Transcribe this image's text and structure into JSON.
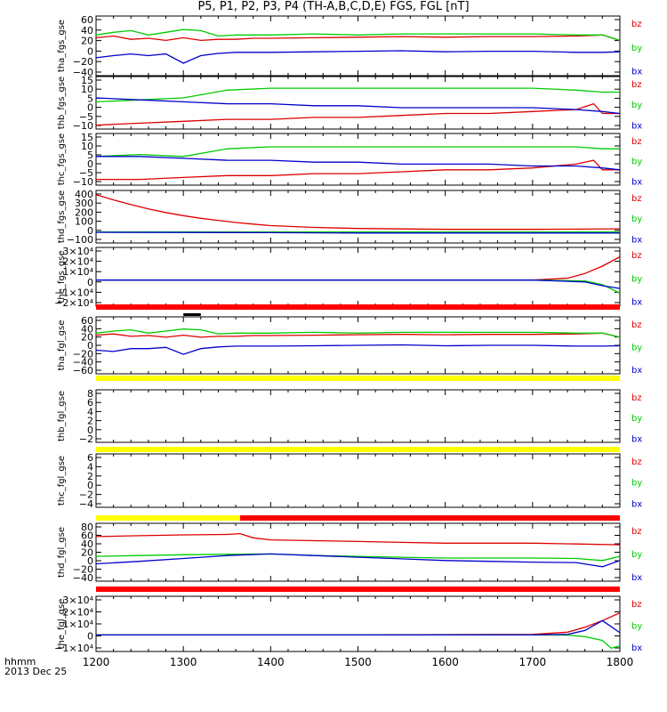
{
  "chart_data": {
    "type": "line",
    "title": "P5, P1, P2, P3, P4 (TH-A,B,C,D,E) FGS, FGL [nT]",
    "x_axis": {
      "label": "hhmm",
      "sublabel": "2013 Dec 25",
      "range": [
        1200,
        1800
      ],
      "ticks": [
        "1200",
        "1300",
        "1400",
        "1500",
        "1600",
        "1700",
        "1800"
      ]
    },
    "legend": [
      "bz",
      "by",
      "bx"
    ],
    "colors": {
      "bz": "#dd0000",
      "by": "#00cc00",
      "bx": "#0000cc",
      "bar_red": "#ff0000",
      "bar_yellow": "#ffff00",
      "bar_black": "#000000"
    },
    "panels": [
      {
        "id": "tha_fgs_gse",
        "ylabel": "tha_fgs_gse",
        "ylim": [
          -45,
          65
        ],
        "yticks": [
          "60",
          "40",
          "20",
          "0",
          "−20",
          "−40"
        ],
        "series": [
          {
            "name": "bz",
            "x": [
              1200,
              1220,
              1240,
              1260,
              1280,
              1300,
              1320,
              1340,
              1360,
              1380,
              1400,
              1450,
              1500,
              1550,
              1600,
              1650,
              1700,
              1750,
              1780,
              1800
            ],
            "y": [
              25,
              28,
              22,
              24,
              20,
              25,
              20,
              22,
              22,
              24,
              24,
              25,
              26,
              27,
              26,
              27,
              27,
              28,
              30,
              20
            ]
          },
          {
            "name": "by",
            "x": [
              1200,
              1220,
              1240,
              1260,
              1280,
              1300,
              1320,
              1340,
              1360,
              1380,
              1400,
              1450,
              1500,
              1550,
              1600,
              1650,
              1700,
              1750,
              1780,
              1800
            ],
            "y": [
              30,
              35,
              38,
              30,
              35,
              40,
              38,
              28,
              30,
              30,
              30,
              32,
              30,
              32,
              32,
              32,
              32,
              30,
              30,
              20
            ]
          },
          {
            "name": "bx",
            "x": [
              1200,
              1220,
              1240,
              1260,
              1280,
              1300,
              1320,
              1340,
              1360,
              1380,
              1400,
              1450,
              1500,
              1550,
              1600,
              1650,
              1700,
              1750,
              1780,
              1800
            ],
            "y": [
              -12,
              -8,
              -5,
              -8,
              -5,
              -22,
              -8,
              -4,
              -2,
              -2,
              -2,
              -1,
              0,
              1,
              -1,
              0,
              0,
              -2,
              -2,
              -1
            ]
          }
        ]
      },
      {
        "id": "thb_fgs_gse",
        "ylabel": "thb_fgs_gse",
        "ylim": [
          -11,
          16
        ],
        "yticks": [
          "15",
          "10",
          "5",
          "0",
          "−5",
          "−10"
        ],
        "series": [
          {
            "name": "bz",
            "x": [
              1200,
              1250,
              1300,
              1350,
              1400,
              1450,
              1500,
              1550,
              1600,
              1650,
              1700,
              1750,
              1770,
              1780,
              1800
            ],
            "y": [
              -9,
              -8,
              -7,
              -6,
              -6,
              -5,
              -5,
              -4,
              -3,
              -3,
              -2,
              -1,
              2,
              -3,
              -3
            ]
          },
          {
            "name": "by",
            "x": [
              1200,
              1250,
              1300,
              1350,
              1400,
              1450,
              1500,
              1550,
              1600,
              1650,
              1700,
              1750,
              1780,
              1800
            ],
            "y": [
              3,
              4,
              5,
              9,
              10,
              10,
              10,
              10,
              10,
              10,
              10,
              9,
              8,
              8
            ]
          },
          {
            "name": "bx",
            "x": [
              1200,
              1250,
              1300,
              1350,
              1400,
              1450,
              1500,
              1550,
              1600,
              1650,
              1700,
              1750,
              1780,
              1800
            ],
            "y": [
              5,
              4,
              3,
              2,
              2,
              1,
              1,
              0,
              0,
              0,
              0,
              -1,
              -2,
              -3
            ]
          }
        ]
      },
      {
        "id": "thc_fgs_gse",
        "ylabel": "thc_fgs_gse",
        "ylim": [
          -11,
          16
        ],
        "yticks": [
          "15",
          "10",
          "5",
          "0",
          "−5",
          "−10"
        ],
        "series": [
          {
            "name": "bz",
            "x": [
              1200,
              1250,
              1300,
              1350,
              1400,
              1450,
              1500,
              1550,
              1600,
              1650,
              1700,
              1750,
              1770,
              1780,
              1800
            ],
            "y": [
              -8,
              -8,
              -7,
              -6,
              -6,
              -5,
              -5,
              -4,
              -3,
              -3,
              -2,
              0,
              2,
              -3,
              -3
            ]
          },
          {
            "name": "by",
            "x": [
              1200,
              1250,
              1300,
              1350,
              1400,
              1450,
              1500,
              1550,
              1600,
              1650,
              1700,
              1750,
              1780,
              1800
            ],
            "y": [
              4,
              5,
              4,
              8,
              9,
              9,
              9,
              9,
              9,
              9,
              9,
              9,
              8,
              8
            ]
          },
          {
            "name": "bx",
            "x": [
              1200,
              1250,
              1300,
              1350,
              1400,
              1450,
              1500,
              1550,
              1600,
              1650,
              1700,
              1750,
              1780,
              1800
            ],
            "y": [
              4,
              4,
              3,
              2,
              2,
              1,
              1,
              0,
              0,
              0,
              -1,
              -1,
              -2,
              -3
            ]
          }
        ]
      },
      {
        "id": "thd_fgs_gse",
        "ylabel": "thd_fgs_gse",
        "ylim": [
          -100,
          400
        ],
        "yticks": [
          "400",
          "300",
          "200",
          "100",
          "0",
          "−100"
        ],
        "series": [
          {
            "name": "bz",
            "x": [
              1200,
              1220,
              1240,
              1260,
              1280,
              1300,
              1320,
              1340,
              1360,
              1380,
              1400,
              1450,
              1500,
              1600,
              1700,
              1800
            ],
            "y": [
              360,
              310,
              265,
              225,
              190,
              160,
              135,
              115,
              95,
              80,
              65,
              48,
              38,
              30,
              30,
              35
            ]
          },
          {
            "name": "by",
            "x": [
              1200,
              1300,
              1400,
              1500,
              1600,
              1700,
              1800
            ],
            "y": [
              5,
              5,
              5,
              5,
              5,
              5,
              5
            ]
          },
          {
            "name": "bx",
            "x": [
              1200,
              1300,
              1400,
              1500,
              1600,
              1700,
              1800
            ],
            "y": [
              2,
              0,
              -2,
              -5,
              -5,
              -5,
              -5
            ]
          }
        ]
      },
      {
        "id": "the_fgs_gse",
        "ylabel": "the_fgs_gse",
        "ylim": [
          -28000,
          35000
        ],
        "yticks": [
          "3×10⁴",
          "2×10⁴",
          "1×10⁴",
          "0",
          "−1×10⁴",
          "−2×10⁴"
        ],
        "series": [
          {
            "name": "bz",
            "x": [
              1200,
              1500,
              1700,
              1740,
              1760,
              1780,
              1800
            ],
            "y": [
              0,
              0,
              0,
              2000,
              7000,
              15000,
              25000
            ]
          },
          {
            "name": "by",
            "x": [
              1200,
              1500,
              1700,
              1760,
              1780,
              1800
            ],
            "y": [
              0,
              0,
              0,
              -1000,
              -5000,
              -14000
            ]
          },
          {
            "name": "bx",
            "x": [
              1200,
              1500,
              1700,
              1760,
              1780,
              1800
            ],
            "y": [
              0,
              0,
              0,
              -2000,
              -6000,
              -9000
            ]
          }
        ]
      },
      {
        "id": "tha_fgl_gse",
        "ylabel": "tha_fgl_gse",
        "ylim": [
          -70,
          70
        ],
        "yticks": [
          "60",
          "40",
          "20",
          "0",
          "−20",
          "−40",
          "−60"
        ],
        "series": [
          {
            "name": "bz",
            "x": [
              1200,
              1220,
              1240,
              1260,
              1280,
              1300,
              1320,
              1340,
              1360,
              1380,
              1400,
              1450,
              1500,
              1550,
              1600,
              1650,
              1700,
              1750,
              1780,
              1800
            ],
            "y": [
              25,
              28,
              22,
              24,
              20,
              25,
              20,
              22,
              22,
              24,
              24,
              25,
              26,
              27,
              26,
              27,
              27,
              28,
              30,
              20
            ]
          },
          {
            "name": "by",
            "x": [
              1200,
              1220,
              1240,
              1260,
              1280,
              1300,
              1320,
              1340,
              1360,
              1380,
              1400,
              1450,
              1500,
              1550,
              1600,
              1650,
              1700,
              1750,
              1780,
              1800
            ],
            "y": [
              30,
              35,
              38,
              30,
              35,
              40,
              38,
              28,
              30,
              30,
              30,
              32,
              30,
              32,
              32,
              32,
              32,
              30,
              30,
              20
            ]
          },
          {
            "name": "bx",
            "x": [
              1200,
              1220,
              1240,
              1260,
              1280,
              1300,
              1320,
              1340,
              1360,
              1380,
              1400,
              1450,
              1500,
              1550,
              1600,
              1650,
              1700,
              1750,
              1780,
              1800
            ],
            "y": [
              -12,
              -15,
              -8,
              -8,
              -5,
              -22,
              -8,
              -4,
              -2,
              -2,
              -2,
              -1,
              0,
              1,
              -1,
              0,
              0,
              -2,
              -2,
              -1
            ]
          }
        ]
      },
      {
        "id": "thb_fgl_gse",
        "ylabel": "thb_fgl_gse",
        "ylim": [
          -3,
          9
        ],
        "yticks": [
          "8",
          "6",
          "4",
          "2",
          "0",
          "−2"
        ],
        "series": []
      },
      {
        "id": "thc_fgl_gse",
        "ylabel": "thc_fgl_gse",
        "ylim": [
          -5,
          7
        ],
        "yticks": [
          "6",
          "4",
          "2",
          "0",
          "−2",
          "−4"
        ],
        "series": []
      },
      {
        "id": "thd_fgl_gse",
        "ylabel": "thd_fgl_gse",
        "ylim": [
          -50,
          90
        ],
        "yticks": [
          "80",
          "60",
          "40",
          "20",
          "0",
          "−20",
          "−40"
        ],
        "series": [
          {
            "name": "bz",
            "x": [
              1200,
              1250,
              1300,
              1350,
              1365,
              1380,
              1400,
              1450,
              1500,
              1550,
              1600,
              1650,
              1700,
              1750,
              1800
            ],
            "y": [
              58,
              60,
              62,
              63,
              65,
              55,
              50,
              48,
              46,
              44,
              42,
              42,
              42,
              40,
              38
            ]
          },
          {
            "name": "by",
            "x": [
              1200,
              1250,
              1300,
              1350,
              1400,
              1450,
              1500,
              1550,
              1600,
              1650,
              1700,
              1750,
              1780,
              1800
            ],
            "y": [
              10,
              12,
              14,
              15,
              16,
              12,
              10,
              8,
              6,
              6,
              6,
              5,
              0,
              10
            ]
          },
          {
            "name": "bx",
            "x": [
              1200,
              1250,
              1300,
              1350,
              1400,
              1450,
              1500,
              1550,
              1600,
              1650,
              1700,
              1750,
              1780,
              1800
            ],
            "y": [
              -8,
              -2,
              5,
              12,
              16,
              12,
              8,
              4,
              0,
              -2,
              -4,
              -5,
              -15,
              0
            ]
          }
        ]
      },
      {
        "id": "the_fgl_gse",
        "ylabel": "the_fgl_gse",
        "ylim": [
          -15000,
          35000
        ],
        "yticks": [
          "3×10⁴",
          "2×10⁴",
          "1×10⁴",
          "0",
          "−1×10⁴"
        ],
        "series": [
          {
            "name": "bz",
            "x": [
              1200,
              1500,
              1700,
              1740,
              1760,
              1780,
              1800
            ],
            "y": [
              0,
              0,
              500,
              2500,
              7000,
              13000,
              20000
            ]
          },
          {
            "name": "by",
            "x": [
              1200,
              1500,
              1700,
              1740,
              1760,
              1780,
              1790,
              1800
            ],
            "y": [
              0,
              0,
              0,
              -200,
              -1500,
              -5000,
              -12000,
              -10000
            ]
          },
          {
            "name": "bx",
            "x": [
              1200,
              1500,
              1700,
              1740,
              1760,
              1780,
              1800
            ],
            "y": [
              0,
              0,
              0,
              500,
              4000,
              13000,
              2000
            ]
          }
        ]
      }
    ]
  }
}
